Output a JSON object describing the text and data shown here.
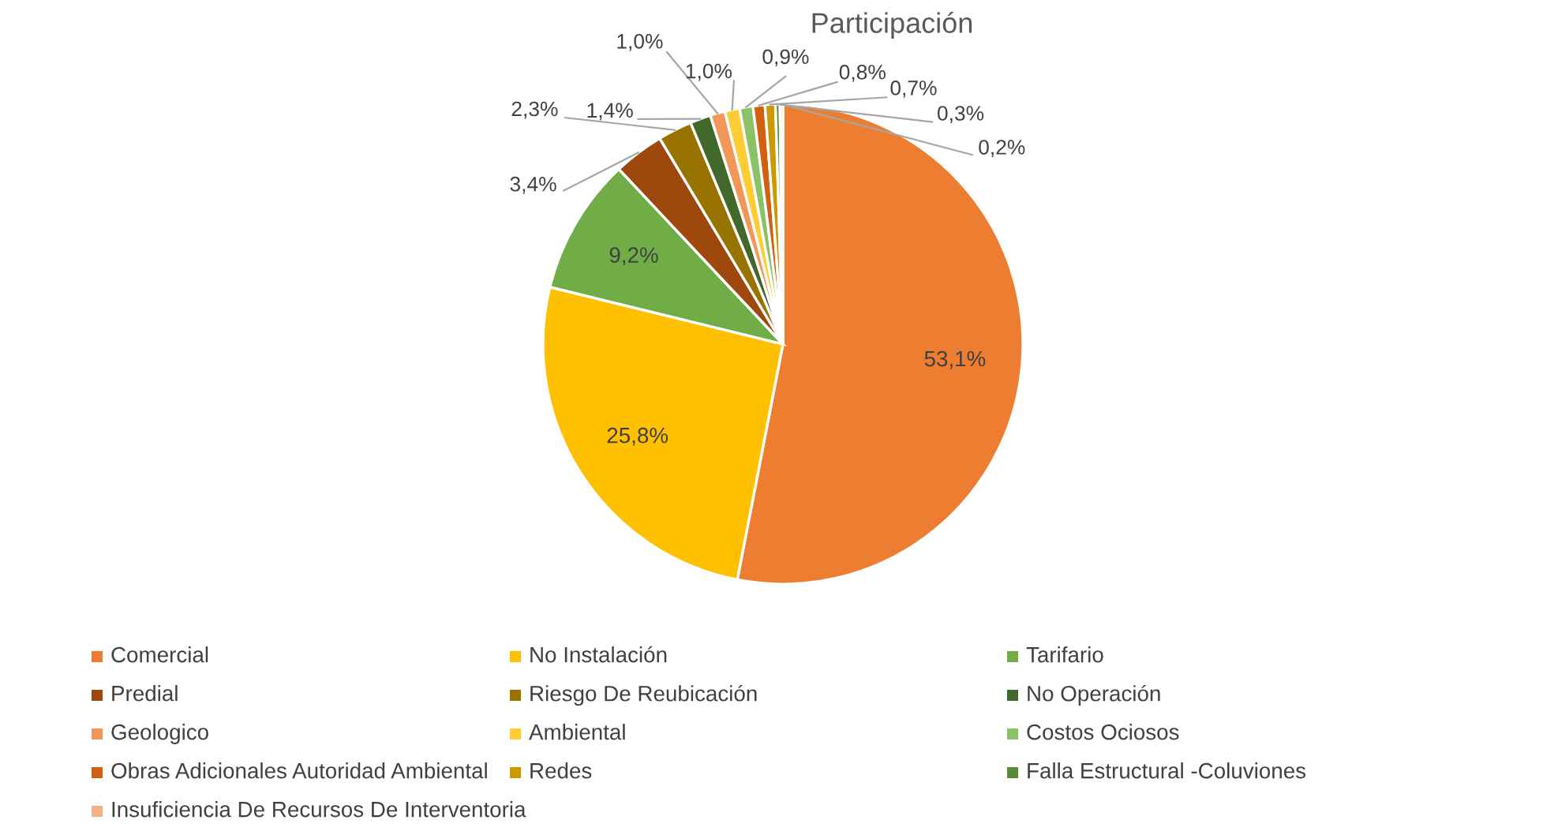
{
  "chart_data": {
    "type": "pie",
    "title": "Participación",
    "categories": [
      "Comercial",
      "No Instalación",
      "Tarifario",
      "Predial",
      "Riesgo De Reubicación",
      "No Operación",
      "Geologico",
      "Ambiental",
      "Costos Ociosos",
      "Obras Adicionales Autoridad Ambiental",
      "Redes",
      "Falla Estructural -Coluviones",
      "Insuficiencia De Recursos De Interventoria"
    ],
    "values": [
      53.1,
      25.8,
      9.2,
      3.4,
      2.3,
      1.4,
      1.0,
      1.0,
      0.9,
      0.8,
      0.7,
      0.3,
      0.2
    ],
    "colors": [
      "#ed7d31",
      "#ffc000",
      "#70ad47",
      "#9e480e",
      "#997300",
      "#43682b",
      "#f1975a",
      "#ffcd33",
      "#8cc168",
      "#d26012",
      "#cc9a00",
      "#5a8a39",
      "#f4b183"
    ],
    "value_labels": [
      "53,1%",
      "25,8%",
      "9,2%",
      "3,4%",
      "2,3%",
      "1,4%",
      "1,0%",
      "1,0%",
      "0,9%",
      "0,8%",
      "0,7%",
      "0,3%",
      "0,2%"
    ],
    "legend": "bottom"
  }
}
